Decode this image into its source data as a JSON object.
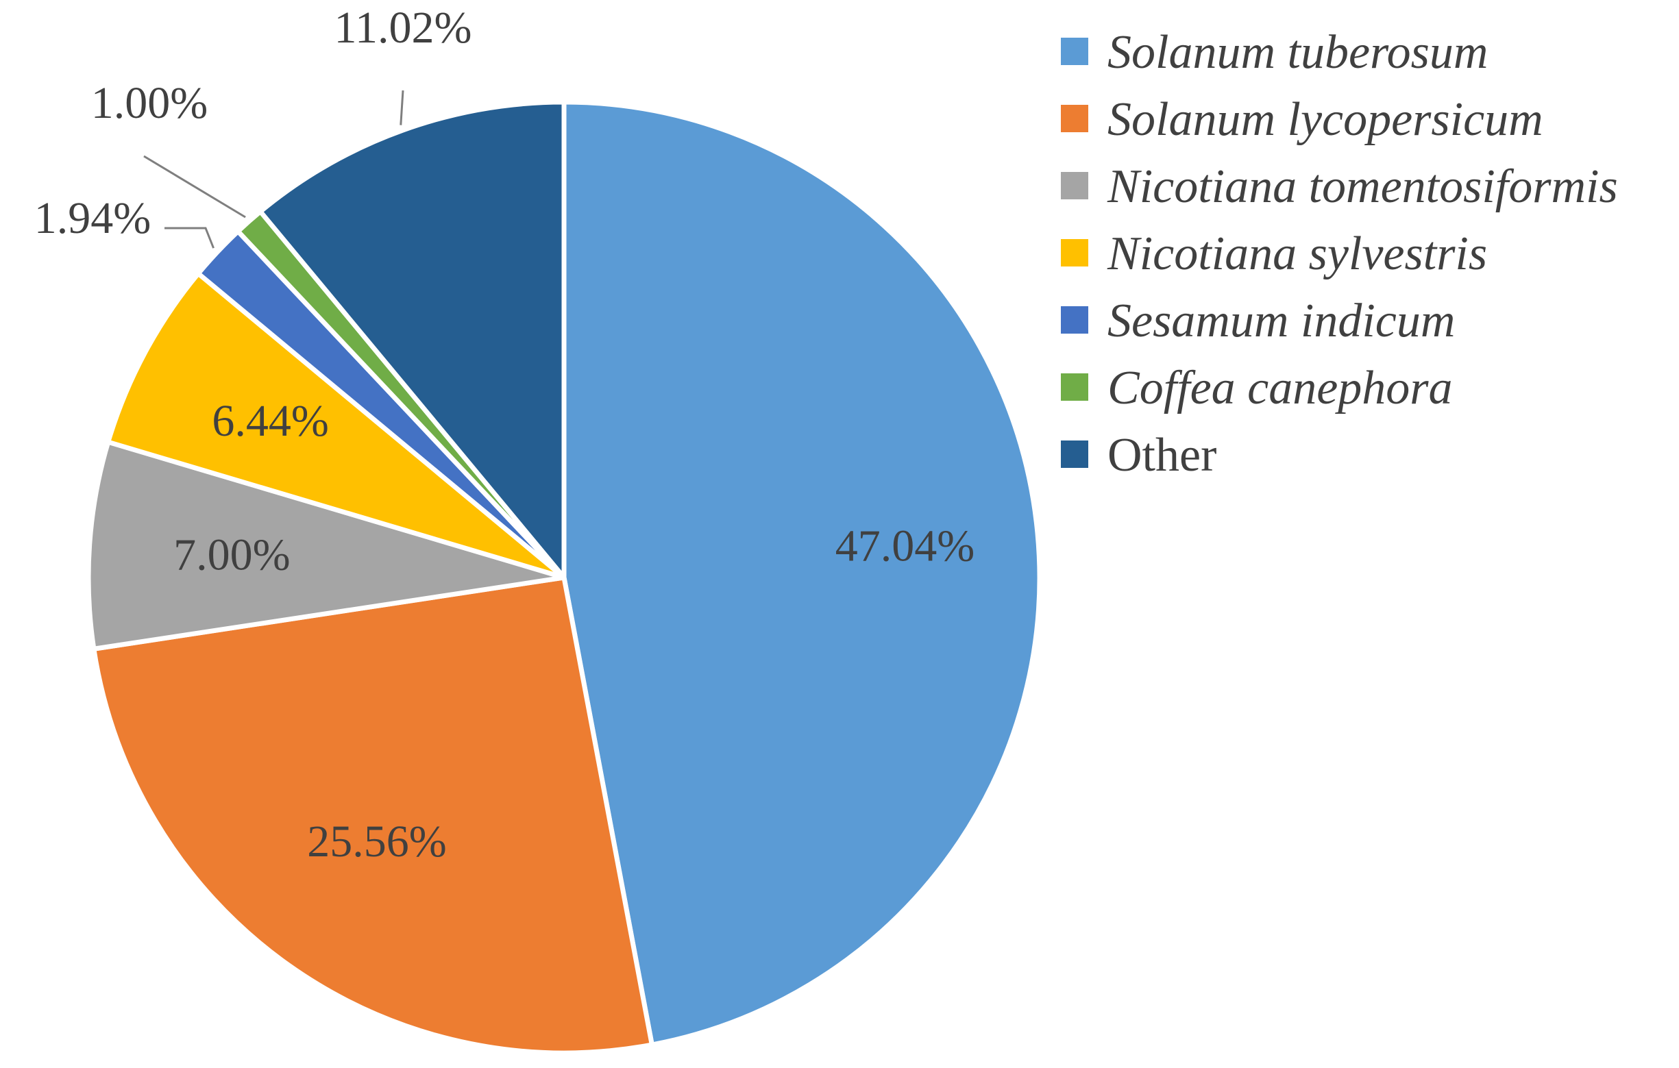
{
  "chart_data": {
    "type": "pie",
    "title": "",
    "start_angle_deg": 0,
    "direction": "clockwise",
    "legend_position": "right",
    "slices": [
      {
        "name": "Solanum tuberosum",
        "value": 47.04,
        "label": "47.04%",
        "color": "#5B9BD5",
        "italic": true,
        "label_color": "#404040"
      },
      {
        "name": "Solanum lycopersicum",
        "value": 25.56,
        "label": "25.56%",
        "color": "#ED7D31",
        "italic": true,
        "label_color": "#404040"
      },
      {
        "name": "Nicotiana tomentosiformis",
        "value": 7.0,
        "label": "7.00%",
        "color": "#A5A5A5",
        "italic": true,
        "label_color": "#404040"
      },
      {
        "name": "Nicotiana sylvestris",
        "value": 6.44,
        "label": "6.44%",
        "color": "#FFC000",
        "italic": true,
        "label_color": "#404040"
      },
      {
        "name": "Sesamum indicum",
        "value": 1.94,
        "label": "1.94%",
        "color": "#4472C4",
        "italic": true,
        "label_color": "#404040"
      },
      {
        "name": "Coffea canephora",
        "value": 1.0,
        "label": "1.00%",
        "color": "#70AD47",
        "italic": true,
        "label_color": "#404040"
      },
      {
        "name": "Other",
        "value": 11.02,
        "label": "11.02%",
        "color": "#255E91",
        "italic": false,
        "label_color": "#404040"
      }
    ]
  }
}
